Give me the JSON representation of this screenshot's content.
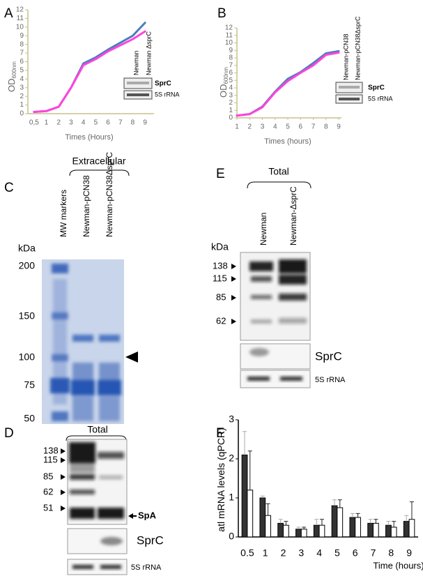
{
  "chart_data": [
    {
      "type": "line",
      "panel_label": "A",
      "ylabel": "OD",
      "ylabel_sub": "600nm",
      "xlabel": "Times (Hours)",
      "categories": [
        "0,5",
        "1",
        "2",
        "3",
        "4",
        "5",
        "6",
        "7",
        "8",
        "9"
      ],
      "series": [
        {
          "name": "Newman",
          "color": "#4a7ebb",
          "values": [
            0.2,
            0.3,
            0.8,
            3.0,
            5.8,
            6.5,
            7.4,
            8.2,
            9.0,
            10.5
          ]
        },
        {
          "name": "Newman ΔsprC",
          "color": "#ff44dd",
          "values": [
            0.2,
            0.3,
            0.8,
            3.0,
            5.6,
            6.3,
            7.2,
            7.9,
            8.6,
            9.5
          ]
        }
      ],
      "ylim": [
        0,
        12
      ],
      "yticks": [
        0,
        1,
        2,
        3,
        4,
        5,
        6,
        7,
        8,
        9,
        10,
        11,
        12
      ],
      "grid": false,
      "inset_rows": [
        "SprC",
        "5S rRNA"
      ]
    },
    {
      "type": "line",
      "panel_label": "B",
      "ylabel": "OD",
      "ylabel_sub": "600nm",
      "xlabel": "Times (hours)",
      "x": [
        1,
        2,
        3,
        4,
        5,
        6,
        7,
        8,
        9
      ],
      "series": [
        {
          "name": "Newman-pCN38",
          "color": "#4a7ebb",
          "values": [
            0.3,
            0.5,
            1.5,
            3.5,
            5.2,
            6.1,
            7.3,
            8.6,
            8.9
          ]
        },
        {
          "name": "Newman-pCN38ΔsprC",
          "color": "#ff44dd",
          "values": [
            0.3,
            0.5,
            1.4,
            3.4,
            4.9,
            6.0,
            7.0,
            8.4,
            8.7
          ]
        }
      ],
      "xlim": [
        1,
        9
      ],
      "xticks": [
        1,
        2,
        3,
        4,
        5,
        6,
        7,
        8,
        9
      ],
      "ylim": [
        0,
        12
      ],
      "yticks": [
        0,
        1,
        2,
        3,
        4,
        5,
        6,
        7,
        8,
        9,
        10,
        11,
        12
      ],
      "grid": false,
      "inset_rows": [
        "SprC",
        "5S rRNA"
      ]
    },
    {
      "type": "bar",
      "panel_label": "F",
      "ylabel": "atl mRNA levels (qPCR)",
      "xlabel": "Time (hours)",
      "categories": [
        "0.5",
        "1",
        "2",
        "3",
        "4",
        "5",
        "6",
        "7",
        "8",
        "9"
      ],
      "series": [
        {
          "color": "#333333",
          "values": [
            2.1,
            1.0,
            0.35,
            0.2,
            0.3,
            0.8,
            0.5,
            0.35,
            0.3,
            0.4
          ],
          "errors": [
            0.6,
            0.05,
            0.1,
            0.05,
            0.15,
            0.15,
            0.1,
            0.1,
            0.1,
            0.15
          ]
        },
        {
          "color": "#ffffff",
          "values": [
            1.2,
            0.55,
            0.3,
            0.2,
            0.3,
            0.75,
            0.5,
            0.35,
            0.25,
            0.45
          ],
          "errors": [
            1.0,
            0.3,
            0.1,
            0.05,
            0.15,
            0.2,
            0.1,
            0.1,
            0.15,
            0.45
          ]
        }
      ],
      "ylim": [
        0,
        3
      ],
      "yticks": [
        0,
        1,
        2,
        3
      ],
      "grid": false
    }
  ],
  "gels": [
    {
      "panel_label": "C",
      "group_label": "Extracellular",
      "lanes": [
        "MW markers",
        "Newman-pCN38",
        "Newman-pCN38ΔsprC"
      ],
      "unit": "kDa",
      "markers": [
        200,
        150,
        100,
        75,
        50
      ]
    },
    {
      "panel_label": "D",
      "group_label": "Total",
      "markers": [
        138,
        115,
        85,
        62,
        51
      ],
      "band_label": "SpA",
      "rows": [
        "SprC",
        "5S rRNA"
      ]
    },
    {
      "panel_label": "E",
      "group_label": "Total",
      "lanes": [
        "Newman",
        "Newman-ΔsprC"
      ],
      "unit": "kDa",
      "markers": [
        138,
        115,
        85,
        62
      ],
      "rows": [
        "SprC",
        "5S rRNA"
      ]
    }
  ]
}
